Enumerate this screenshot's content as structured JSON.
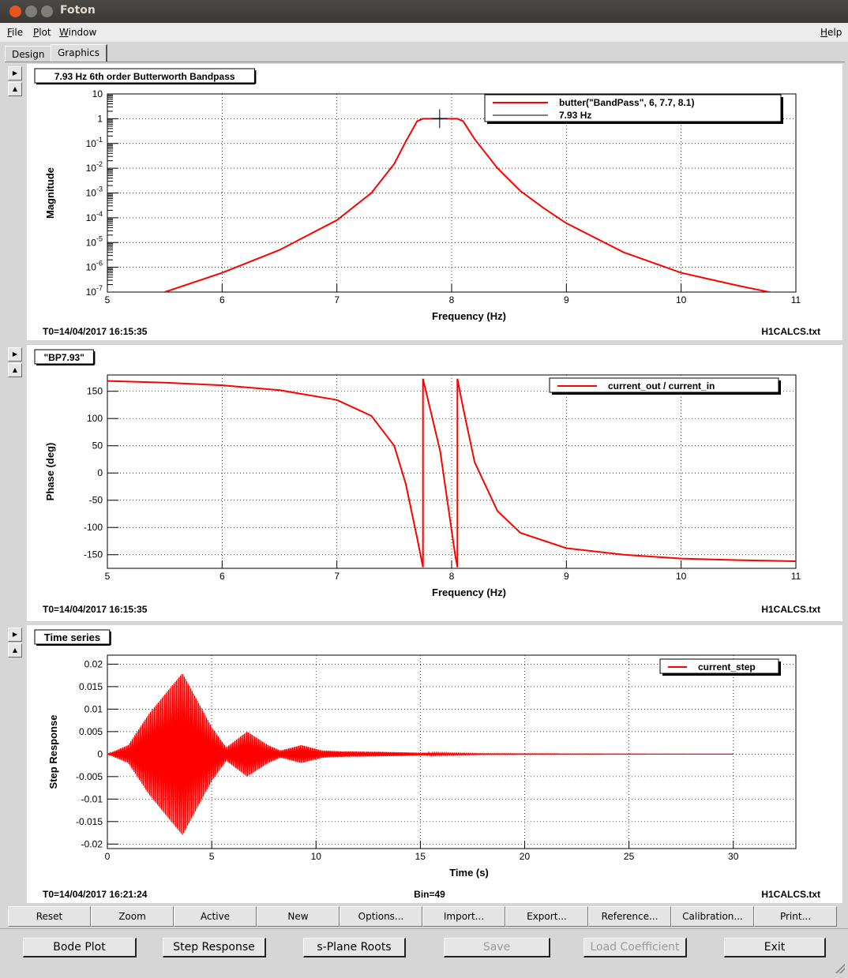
{
  "window": {
    "title": "Foton"
  },
  "menu": {
    "file": "File",
    "plot": "Plot",
    "window": "Window",
    "help": "Help"
  },
  "tabs": [
    {
      "label": "Design"
    },
    {
      "label": "Graphics"
    }
  ],
  "colors": {
    "trace": "#ff0000",
    "ref": "#000000"
  },
  "pads": [
    {
      "title": "7.93 Hz 6th order Butterworth Bandpass",
      "ylabel": "Magnitude",
      "xlabel": "Frequency (Hz)",
      "t0": "T0=14/04/2017 16:15:35",
      "file": "H1CALCS.txt",
      "bin": "",
      "legend": [
        "butter(\"BandPass\", 6, 7.7, 8.1)",
        "7.93 Hz"
      ]
    },
    {
      "title": "\"BP7.93\"",
      "ylabel": "Phase (deg)",
      "xlabel": "Frequency (Hz)",
      "t0": "T0=14/04/2017 16:15:35",
      "file": "H1CALCS.txt",
      "bin": "",
      "legend": [
        "current_out / current_in"
      ]
    },
    {
      "title": "Time series",
      "ylabel": "Step Response",
      "xlabel": "Time (s)",
      "t0": "T0=14/04/2017 16:21:24",
      "file": "H1CALCS.txt",
      "bin": "Bin=49",
      "legend": [
        "current_step"
      ]
    }
  ],
  "chart_data": [
    {
      "type": "line",
      "title": "7.93 Hz 6th order Butterworth Bandpass",
      "xlabel": "Frequency (Hz)",
      "ylabel": "Magnitude",
      "xlim": [
        5,
        11
      ],
      "ylim": [
        1e-07,
        10
      ],
      "yscale": "log",
      "grid": true,
      "legend_position": "top-right",
      "xticks": [
        "5",
        "6",
        "7",
        "8",
        "9",
        "10",
        "11"
      ],
      "yticks": [
        "10",
        "1",
        "10-1",
        "10-2",
        "10-3",
        "10-4",
        "10-5",
        "10-6",
        "10-7"
      ],
      "series": [
        {
          "name": "butter(\"BandPass\", 6, 7.7, 8.1)",
          "x": [
            5.5,
            6.0,
            6.5,
            7.0,
            7.3,
            7.5,
            7.6,
            7.7,
            7.75,
            7.9,
            8.05,
            8.1,
            8.2,
            8.4,
            8.6,
            8.8,
            9.0,
            9.5,
            10.0,
            10.5,
            11.0
          ],
          "y": [
            1e-07,
            6e-07,
            5e-06,
            8e-05,
            0.001,
            0.015,
            0.12,
            0.8,
            1.0,
            1.0,
            1.0,
            0.8,
            0.15,
            0.01,
            0.0012,
            0.00025,
            6e-05,
            4e-06,
            6e-07,
            1.8e-07,
            5e-08
          ]
        },
        {
          "name": "7.93 Hz",
          "x": [
            7.93
          ],
          "y": [
            1
          ]
        }
      ]
    },
    {
      "type": "line",
      "title": "\"BP7.93\"",
      "xlabel": "Frequency (Hz)",
      "ylabel": "Phase (deg)",
      "xlim": [
        5,
        11
      ],
      "ylim": [
        -175,
        180
      ],
      "grid": true,
      "legend_position": "top-right",
      "xticks": [
        "5",
        "6",
        "7",
        "8",
        "9",
        "10",
        "11"
      ],
      "yticks": [
        "150",
        "100",
        "50",
        "0",
        "-50",
        "-100",
        "-150"
      ],
      "series": [
        {
          "name": "current_out / current_in",
          "x": [
            5.0,
            5.5,
            6.0,
            6.5,
            7.0,
            7.3,
            7.5,
            7.6,
            7.7,
            7.75,
            7.75,
            7.9,
            8.03,
            8.05,
            8.05,
            8.1,
            8.2,
            8.4,
            8.6,
            9.0,
            9.5,
            10.0,
            10.5,
            11.0
          ],
          "y": [
            169,
            166,
            161,
            152,
            134,
            105,
            50,
            -20,
            -120,
            -173,
            173,
            40,
            -150,
            -173,
            173,
            120,
            20,
            -70,
            -110,
            -138,
            -150,
            -157,
            -160,
            -162
          ]
        }
      ]
    },
    {
      "type": "line",
      "title": "Time series",
      "xlabel": "Time (s)",
      "ylabel": "Step Response",
      "xlim": [
        0,
        33
      ],
      "ylim": [
        -0.021,
        0.022
      ],
      "grid": true,
      "legend_position": "top-right",
      "xticks": [
        "0",
        "5",
        "10",
        "15",
        "20",
        "25",
        "30"
      ],
      "yticks": [
        "0.02",
        "0.015",
        "0.01",
        "0.005",
        "0",
        "-0.005",
        "-0.01",
        "-0.015",
        "-0.02"
      ],
      "series": [
        {
          "name": "current_step",
          "description_points": {
            "x": [
              0,
              1.0,
              2.0,
              3.6,
              5.0,
              5.7,
              6.7,
              7.7,
              8.3,
              9.3,
              10.3,
              11.3,
              13,
              15,
              18,
              30
            ],
            "envelope": [
              0,
              0.002,
              0.009,
              0.018,
              0.006,
              0.0015,
              0.005,
              0.002,
              0.0008,
              0.002,
              0.0008,
              0.0006,
              0.0005,
              0.0003,
              0.0001,
              0
            ]
          }
        }
      ]
    }
  ],
  "bar_buttons": [
    "Reset",
    "Zoom",
    "Active",
    "New",
    "Options...",
    "Import...",
    "Export...",
    "Reference...",
    "Calibration...",
    "Print..."
  ],
  "bottom_buttons": [
    "Bode Plot",
    "Step Response",
    "s-Plane Roots",
    "Save",
    "Load Coefficient",
    "Exit"
  ]
}
